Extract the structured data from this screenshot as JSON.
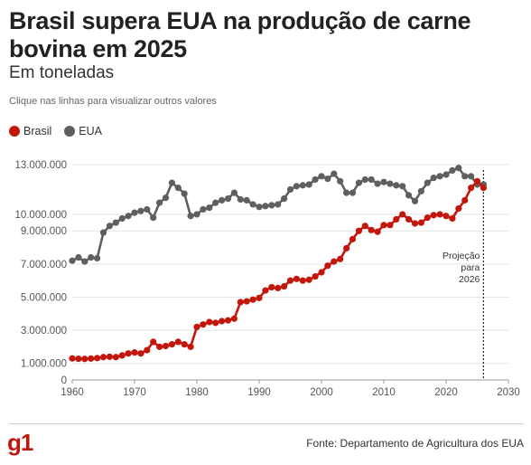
{
  "header": {
    "title": "Brasil supera EUA na produção de carne bovina em 2025",
    "subtitle": "Em toneladas",
    "hint": "Clique nas linhas para visualizar outros valores"
  },
  "footer": {
    "logo": "g1",
    "source": "Fonte: Departamento de Agricultura dos EUA"
  },
  "chart_data": {
    "type": "line",
    "x": [
      1960,
      1961,
      1962,
      1963,
      1964,
      1965,
      1966,
      1967,
      1968,
      1969,
      1970,
      1971,
      1972,
      1973,
      1974,
      1975,
      1976,
      1977,
      1978,
      1979,
      1980,
      1981,
      1982,
      1983,
      1984,
      1985,
      1986,
      1987,
      1988,
      1989,
      1990,
      1991,
      1992,
      1993,
      1994,
      1995,
      1996,
      1997,
      1998,
      1999,
      2000,
      2001,
      2002,
      2003,
      2004,
      2005,
      2006,
      2007,
      2008,
      2009,
      2010,
      2011,
      2012,
      2013,
      2014,
      2015,
      2016,
      2017,
      2018,
      2019,
      2020,
      2021,
      2022,
      2023,
      2024,
      2025,
      2026
    ],
    "series": [
      {
        "name": "Brasil",
        "color": "#c4170c",
        "values": [
          1300000,
          1280000,
          1270000,
          1290000,
          1320000,
          1380000,
          1400000,
          1380000,
          1480000,
          1600000,
          1660000,
          1600000,
          1800000,
          2300000,
          2000000,
          2050000,
          2150000,
          2300000,
          2150000,
          2000000,
          3200000,
          3350000,
          3500000,
          3450000,
          3550000,
          3600000,
          3700000,
          4700000,
          4750000,
          4850000,
          4950000,
          5400000,
          5600000,
          5550000,
          5650000,
          6000000,
          6100000,
          6000000,
          6050000,
          6250000,
          6500000,
          6900000,
          7150000,
          7300000,
          7950000,
          8500000,
          9000000,
          9300000,
          9050000,
          8950000,
          9350000,
          9350000,
          9700000,
          10000000,
          9700000,
          9450000,
          9500000,
          9800000,
          9950000,
          10000000,
          9900000,
          9750000,
          10350000,
          10850000,
          11600000,
          12000000,
          11600000
        ]
      },
      {
        "name": "EUA",
        "color": "#5f5f5f",
        "values": [
          7200000,
          7400000,
          7150000,
          7400000,
          7350000,
          8900000,
          9300000,
          9500000,
          9750000,
          9900000,
          10100000,
          10200000,
          10300000,
          9800000,
          10700000,
          11000000,
          11900000,
          11600000,
          11250000,
          9900000,
          10000000,
          10300000,
          10400000,
          10700000,
          10850000,
          10950000,
          11300000,
          10900000,
          10850000,
          10600000,
          10450000,
          10500000,
          10550000,
          10600000,
          10950000,
          11500000,
          11700000,
          11750000,
          11800000,
          12100000,
          12300000,
          12150000,
          12450000,
          12000000,
          11300000,
          11300000,
          11900000,
          12100000,
          12100000,
          11850000,
          11950000,
          11850000,
          11750000,
          11700000,
          11150000,
          10800000,
          11400000,
          11900000,
          12200000,
          12300000,
          12400000,
          12650000,
          12800000,
          12300000,
          12300000,
          11800000,
          11800000
        ]
      }
    ],
    "xlim": [
      1960,
      2030
    ],
    "ylim": [
      0,
      13000000
    ],
    "xticks": [
      1960,
      1970,
      1980,
      1990,
      2000,
      2010,
      2020,
      2030
    ],
    "xtick_labels": [
      "1960",
      "1970",
      "1980",
      "1990",
      "2000",
      "2010",
      "2020",
      "2030"
    ],
    "yticks": [
      0,
      1000000,
      3000000,
      5000000,
      7000000,
      9000000,
      10000000,
      13000000
    ],
    "ytick_labels": [
      "0",
      "1.000.000",
      "3.000.000",
      "5.000.000",
      "7.000.000",
      "9.000.000",
      "10.000.000",
      "13.000.000"
    ],
    "grid": true,
    "legend": "top-left",
    "annotation": {
      "x": 2026,
      "text": [
        "Projeção",
        "para",
        "2026"
      ]
    }
  }
}
